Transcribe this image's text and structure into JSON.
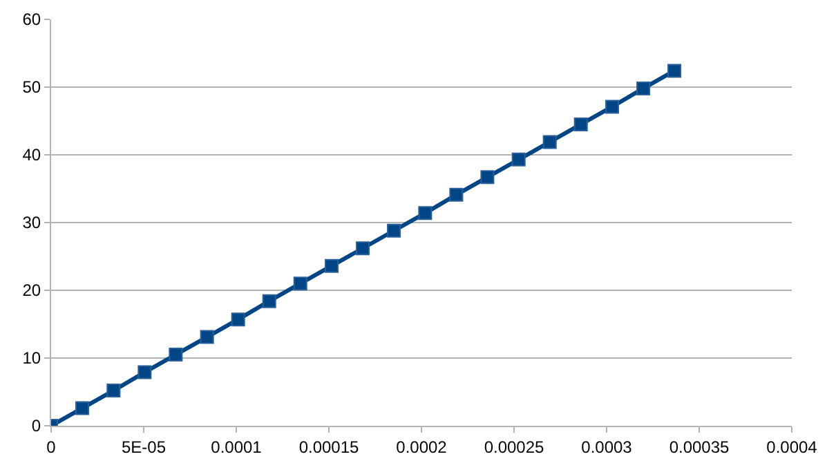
{
  "chart_data": {
    "type": "line",
    "x": [
      0,
      1.68e-05,
      3.37e-05,
      5.05e-05,
      6.73e-05,
      8.42e-05,
      0.000101,
      0.0001178,
      0.0001346,
      0.0001515,
      0.0001683,
      0.0001851,
      0.000202,
      0.0002188,
      0.0002356,
      0.0002525,
      0.0002693,
      0.0002861,
      0.000303,
      0.0003198,
      0.0003366
    ],
    "series": [
      {
        "color": "#004586",
        "values": [
          0,
          2.6,
          5.2,
          7.9,
          10.5,
          13.1,
          15.7,
          18.4,
          21.0,
          23.6,
          26.2,
          28.8,
          31.4,
          34.1,
          36.7,
          39.3,
          41.9,
          44.5,
          47.1,
          49.8,
          52.4
        ]
      }
    ],
    "xlim": [
      0,
      0.0004
    ],
    "xticks": [
      0,
      {
        "value": 5e-05,
        "label": "5E-05"
      },
      {
        "value": 0.0001,
        "label": "0.0001"
      },
      {
        "value": 0.00015,
        "label": "0.00015"
      },
      {
        "value": 0.0002,
        "label": "0.0002"
      },
      {
        "value": 0.00025,
        "label": "0.00025"
      },
      {
        "value": 0.0003,
        "label": "0.0003"
      },
      {
        "value": 0.00035,
        "label": "0.00035"
      },
      {
        "value": 0.0004,
        "label": "0.0004"
      }
    ],
    "ylim": [
      0,
      60
    ],
    "yticks": [
      0,
      10,
      20,
      30,
      40,
      50,
      60
    ],
    "grid": "y",
    "marker": "square",
    "line_style": "solid"
  }
}
